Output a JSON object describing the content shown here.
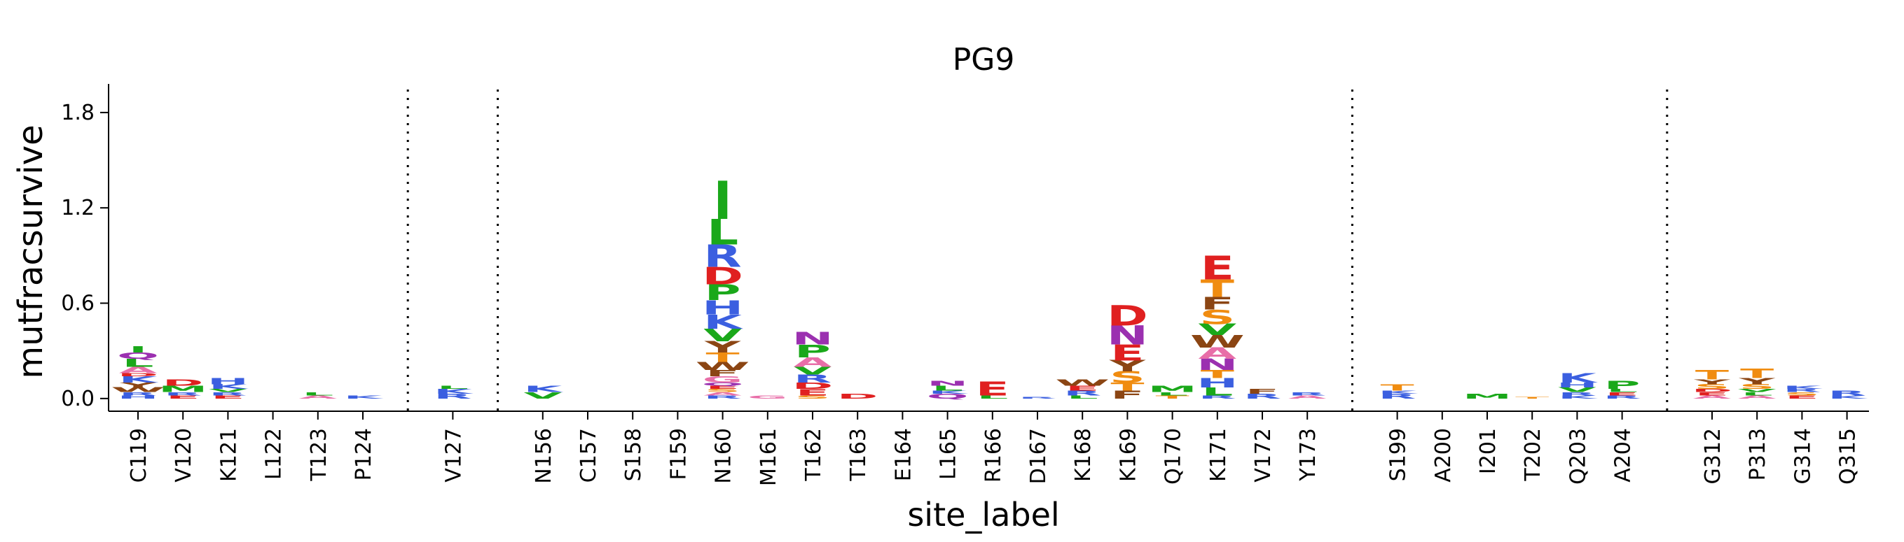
{
  "chart_data": {
    "type": "logo",
    "title": "PG9",
    "xlabel": "site_label",
    "ylabel": "mutfracsurvive",
    "ylim": [
      -0.08,
      1.98
    ],
    "yticks": [
      "0.0",
      "0.6",
      "1.2",
      "1.8"
    ],
    "ytick_values": [
      0.0,
      0.6,
      1.2,
      1.8
    ],
    "colors": {
      "I": "#1aa81a",
      "L": "#1aa81a",
      "M": "#1aa81a",
      "V": "#1aa81a",
      "R": "#3b5fe0",
      "K": "#3b5fe0",
      "H": "#3b5fe0",
      "D": "#e02020",
      "E": "#e02020",
      "P": "#1aa81a",
      "A": "#e86ea8",
      "N": "#9b30b0",
      "Q": "#9b30b0",
      "T": "#f08c10",
      "S": "#f08c10",
      "Y": "#8b4513",
      "W": "#8b4513",
      "F": "#8b4513",
      "G": "#e86ea8",
      "C": "#f08c10"
    },
    "groups": [
      {
        "sites": [
          {
            "label": "C119",
            "letters": [
              [
                "H",
                0.02
              ],
              [
                "R",
                0.02
              ],
              [
                "W",
                0.03
              ],
              [
                "Y",
                0.03
              ],
              [
                "K",
                0.04
              ],
              [
                "D",
                0.02
              ],
              [
                "A",
                0.04
              ],
              [
                "L",
                0.05
              ],
              [
                "Q",
                0.04
              ],
              [
                "I",
                0.04
              ]
            ]
          },
          {
            "label": "V120",
            "letters": [
              [
                "E",
                0.02
              ],
              [
                "R",
                0.02
              ],
              [
                "M",
                0.04
              ],
              [
                "D",
                0.04
              ]
            ]
          },
          {
            "label": "K121",
            "letters": [
              [
                "E",
                0.02
              ],
              [
                "R",
                0.02
              ],
              [
                "V",
                0.02
              ],
              [
                "K",
                0.03
              ],
              [
                "H",
                0.04
              ]
            ]
          },
          {
            "label": "L122",
            "letters": []
          },
          {
            "label": "T123",
            "letters": [
              [
                "A",
                0.02
              ],
              [
                "L",
                0.02
              ]
            ]
          },
          {
            "label": "P124",
            "letters": [
              [
                "K",
                0.02
              ]
            ]
          }
        ]
      },
      {
        "sites": [
          {
            "label": "V127",
            "letters": [
              [
                "R",
                0.03
              ],
              [
                "K",
                0.03
              ],
              [
                "L",
                0.02
              ]
            ]
          }
        ]
      },
      {
        "sites": [
          {
            "label": "N156",
            "letters": [
              [
                "V",
                0.04
              ],
              [
                "K",
                0.04
              ]
            ]
          },
          {
            "label": "C157",
            "letters": []
          },
          {
            "label": "S158",
            "letters": []
          },
          {
            "label": "F159",
            "letters": []
          },
          {
            "label": "N160",
            "letters": [
              [
                "R",
                0.02
              ],
              [
                "A",
                0.02
              ],
              [
                "S",
                0.02
              ],
              [
                "E",
                0.02
              ],
              [
                "Q",
                0.02
              ],
              [
                "G",
                0.04
              ],
              [
                "F",
                0.04
              ],
              [
                "W",
                0.05
              ],
              [
                "T",
                0.06
              ],
              [
                "Y",
                0.07
              ],
              [
                "V",
                0.08
              ],
              [
                "K",
                0.09
              ],
              [
                "H",
                0.09
              ],
              [
                "P",
                0.1
              ],
              [
                "D",
                0.11
              ],
              [
                "R",
                0.14
              ],
              [
                "L",
                0.16
              ],
              [
                "I",
                0.24
              ]
            ]
          },
          {
            "label": "M161",
            "letters": [
              [
                "G",
                0.02
              ]
            ]
          },
          {
            "label": "T162",
            "letters": [
              [
                "S",
                0.02
              ],
              [
                "E",
                0.04
              ],
              [
                "D",
                0.04
              ],
              [
                "R",
                0.05
              ],
              [
                "V",
                0.05
              ],
              [
                "A",
                0.06
              ],
              [
                "P",
                0.08
              ],
              [
                "N",
                0.08
              ]
            ]
          },
          {
            "label": "T163",
            "letters": [
              [
                "D",
                0.03
              ]
            ]
          },
          {
            "label": "E164",
            "letters": []
          },
          {
            "label": "L165",
            "letters": [
              [
                "Q",
                0.03
              ],
              [
                "K",
                0.02
              ],
              [
                "L",
                0.03
              ],
              [
                "N",
                0.03
              ]
            ]
          },
          {
            "label": "R166",
            "letters": [
              [
                "L",
                0.02
              ],
              [
                "E",
                0.09
              ]
            ]
          },
          {
            "label": "D167",
            "letters": [
              [
                "R",
                0.01
              ]
            ]
          },
          {
            "label": "K168",
            "letters": [
              [
                "L",
                0.02
              ],
              [
                "R",
                0.03
              ],
              [
                "E",
                0.03
              ],
              [
                "W",
                0.04
              ]
            ]
          },
          {
            "label": "K169",
            "letters": [
              [
                "F",
                0.05
              ],
              [
                "T",
                0.05
              ],
              [
                "S",
                0.07
              ],
              [
                "Y",
                0.07
              ],
              [
                "E",
                0.1
              ],
              [
                "N",
                0.12
              ],
              [
                "D",
                0.13
              ]
            ]
          },
          {
            "label": "Q170",
            "letters": [
              [
                "T",
                0.02
              ],
              [
                "L",
                0.02
              ],
              [
                "M",
                0.04
              ]
            ]
          },
          {
            "label": "K171",
            "letters": [
              [
                "R",
                0.02
              ],
              [
                "L",
                0.05
              ],
              [
                "H",
                0.06
              ],
              [
                "T",
                0.05
              ],
              [
                "N",
                0.07
              ],
              [
                "A",
                0.07
              ],
              [
                "W",
                0.08
              ],
              [
                "V",
                0.07
              ],
              [
                "S",
                0.09
              ],
              [
                "F",
                0.08
              ],
              [
                "T",
                0.11
              ],
              [
                "E",
                0.15
              ]
            ]
          },
          {
            "label": "V172",
            "letters": [
              [
                "R",
                0.03
              ],
              [
                "F",
                0.03
              ]
            ]
          },
          {
            "label": "Y173",
            "letters": [
              [
                "A",
                0.02
              ],
              [
                "R",
                0.02
              ]
            ]
          }
        ]
      },
      {
        "sites": [
          {
            "label": "S199",
            "letters": [
              [
                "R",
                0.03
              ],
              [
                "K",
                0.02
              ],
              [
                "T",
                0.04
              ]
            ]
          },
          {
            "label": "A200",
            "letters": []
          },
          {
            "label": "I201",
            "letters": [
              [
                "M",
                0.03
              ]
            ]
          },
          {
            "label": "T202",
            "letters": [
              [
                "T",
                0.01
              ]
            ]
          },
          {
            "label": "Q203",
            "letters": [
              [
                "K",
                0.02
              ],
              [
                "R",
                0.02
              ],
              [
                "V",
                0.03
              ],
              [
                "H",
                0.03
              ],
              [
                "K",
                0.06
              ]
            ]
          },
          {
            "label": "A204",
            "letters": [
              [
                "R",
                0.02
              ],
              [
                "E",
                0.02
              ],
              [
                "L",
                0.02
              ],
              [
                "P",
                0.05
              ]
            ]
          }
        ]
      },
      {
        "sites": [
          {
            "label": "G312",
            "letters": [
              [
                "A",
                0.02
              ],
              [
                "E",
                0.02
              ],
              [
                "D",
                0.02
              ],
              [
                "S",
                0.03
              ],
              [
                "Y",
                0.03
              ],
              [
                "T",
                0.06
              ]
            ]
          },
          {
            "label": "P313",
            "letters": [
              [
                "A",
                0.02
              ],
              [
                "L",
                0.02
              ],
              [
                "V",
                0.02
              ],
              [
                "S",
                0.03
              ],
              [
                "Y",
                0.04
              ],
              [
                "T",
                0.06
              ]
            ]
          },
          {
            "label": "G314",
            "letters": [
              [
                "E",
                0.02
              ],
              [
                "S",
                0.02
              ],
              [
                "R",
                0.02
              ],
              [
                "K",
                0.02
              ]
            ]
          },
          {
            "label": "Q315",
            "letters": [
              [
                "K",
                0.02
              ],
              [
                "R",
                0.03
              ]
            ]
          }
        ]
      }
    ]
  }
}
